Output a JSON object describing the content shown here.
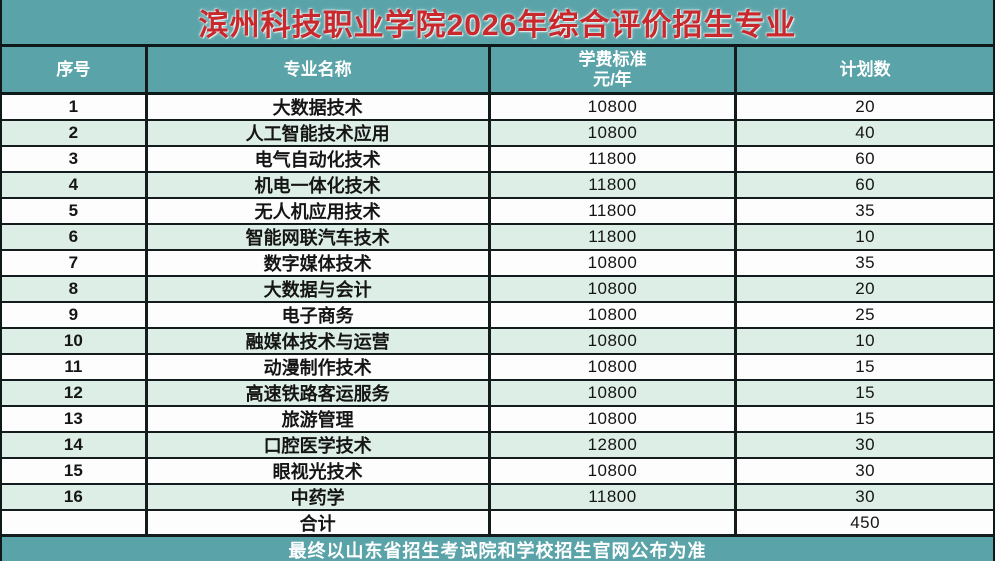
{
  "title": "滨州科技职业学院2026年综合评价招生专业",
  "colors": {
    "teal": "#5aa3a8",
    "row_white": "#fdfdfd",
    "row_green": "#dceee6",
    "border_dark": "#141b1c",
    "title_red": "#c9282d",
    "header_text": "#ffffff"
  },
  "table": {
    "headers": {
      "no": "序号",
      "major": "专业名称",
      "fee_line1": "学费标准",
      "fee_line2": "元/年",
      "plan": "计划数"
    },
    "rows": [
      {
        "no": "1",
        "major": "大数据技术",
        "fee": "10800",
        "plan": "20"
      },
      {
        "no": "2",
        "major": "人工智能技术应用",
        "fee": "10800",
        "plan": "40"
      },
      {
        "no": "3",
        "major": "电气自动化技术",
        "fee": "11800",
        "plan": "60"
      },
      {
        "no": "4",
        "major": "机电一体化技术",
        "fee": "11800",
        "plan": "60"
      },
      {
        "no": "5",
        "major": "无人机应用技术",
        "fee": "11800",
        "plan": "35"
      },
      {
        "no": "6",
        "major": "智能网联汽车技术",
        "fee": "11800",
        "plan": "10"
      },
      {
        "no": "7",
        "major": "数字媒体技术",
        "fee": "10800",
        "plan": "35"
      },
      {
        "no": "8",
        "major": "大数据与会计",
        "fee": "10800",
        "plan": "20"
      },
      {
        "no": "9",
        "major": "电子商务",
        "fee": "10800",
        "plan": "25"
      },
      {
        "no": "10",
        "major": "融媒体技术与运营",
        "fee": "10800",
        "plan": "10"
      },
      {
        "no": "11",
        "major": "动漫制作技术",
        "fee": "10800",
        "plan": "15"
      },
      {
        "no": "12",
        "major": "高速铁路客运服务",
        "fee": "10800",
        "plan": "15"
      },
      {
        "no": "13",
        "major": "旅游管理",
        "fee": "10800",
        "plan": "15"
      },
      {
        "no": "14",
        "major": "口腔医学技术",
        "fee": "12800",
        "plan": "30"
      },
      {
        "no": "15",
        "major": "眼视光技术",
        "fee": "10800",
        "plan": "30"
      },
      {
        "no": "16",
        "major": "中药学",
        "fee": "11800",
        "plan": "30"
      }
    ],
    "total": {
      "no": "",
      "label": "合计",
      "fee": "",
      "plan": "450"
    }
  },
  "footer": "最终以山东省招生考试院和学校招生官网公布为准"
}
